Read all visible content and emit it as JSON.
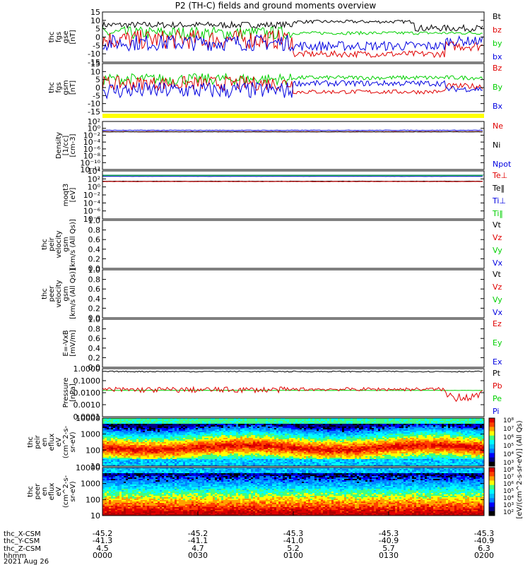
{
  "title": "P2 (TH-C) fields and ground moments overview",
  "colors": {
    "black": "#000000",
    "red": "#e00000",
    "green": "#00d000",
    "blue": "#0000e0",
    "teal": "#2e8b8b",
    "yellow": "#ffff00"
  },
  "chart_data": [
    {
      "id": "p1",
      "type": "line",
      "ylabel": [
        "thc",
        "fgs",
        "gse",
        "[nT]"
      ],
      "ticks": [
        "15",
        "10",
        "5",
        "0",
        "-5",
        "-10",
        "-15"
      ],
      "ylim": [
        -15,
        16
      ],
      "grid": false,
      "legend": [
        {
          "label": "Bt",
          "color": "black"
        },
        {
          "label": "bz",
          "color": "red"
        },
        {
          "label": "by",
          "color": "green"
        },
        {
          "label": "bx",
          "color": "blue"
        }
      ],
      "series": [
        {
          "name": "Bt",
          "seg": [
            [
              0,
              0.5,
              8,
              2
            ],
            [
              0.5,
              0.82,
              10,
              1
            ],
            [
              0.82,
              1,
              6,
              2
            ]
          ]
        },
        {
          "name": "by",
          "seg": [
            [
              0,
              0.5,
              3,
              4
            ],
            [
              0.5,
              1,
              3,
              1
            ]
          ]
        },
        {
          "name": "bz",
          "seg": [
            [
              0,
              0.5,
              -1,
              6
            ],
            [
              0.5,
              0.9,
              -10,
              2
            ],
            [
              0.9,
              1,
              -5,
              3
            ]
          ]
        },
        {
          "name": "bx",
          "seg": [
            [
              0,
              0.5,
              -3,
              5
            ],
            [
              0.5,
              0.9,
              -5,
              3
            ],
            [
              0.9,
              1,
              -2,
              3
            ]
          ]
        }
      ]
    },
    {
      "id": "p2",
      "type": "line",
      "ylabel": [
        "thc",
        "fgs",
        "gsm",
        "[nT]"
      ],
      "ticks": [
        "15",
        "10",
        "5",
        "0",
        "-5",
        "-10",
        "-15"
      ],
      "ylim": [
        -18,
        16
      ],
      "grid": false,
      "legend": [
        {
          "label": "Bz",
          "color": "red"
        },
        {
          "label": "By",
          "color": "green"
        },
        {
          "label": "Bx",
          "color": "blue"
        }
      ],
      "series": [
        {
          "name": "By",
          "seg": [
            [
              0,
              0.5,
              5,
              4
            ],
            [
              0.5,
              1,
              6,
              1.5
            ]
          ]
        },
        {
          "name": "Bz",
          "seg": [
            [
              0,
              0.5,
              2,
              5
            ],
            [
              0.5,
              0.9,
              -4,
              1.5
            ],
            [
              0.9,
              1,
              0,
              2
            ]
          ]
        },
        {
          "name": "Bx",
          "seg": [
            [
              0,
              0.5,
              -3,
              6
            ],
            [
              0.5,
              0.9,
              2,
              2
            ],
            [
              0.9,
              1,
              -2,
              2
            ]
          ]
        }
      ]
    },
    {
      "id": "p3",
      "type": "line",
      "ylabel": [
        "Density",
        "[1/cc]",
        "[cm-3]"
      ],
      "ticks": [
        "10²",
        "10⁰",
        "10⁻²",
        "10⁻⁴",
        "10⁻⁶",
        "10⁻⁸",
        "10⁻¹⁰",
        "10⁻¹²"
      ],
      "ylim": [
        -13,
        3
      ],
      "grid": false,
      "legend": [
        {
          "label": "Ne",
          "color": "red"
        },
        {
          "label": "Ni",
          "color": "black"
        },
        {
          "label": "Npot",
          "color": "blue"
        }
      ],
      "series": [
        {
          "name": "Npot",
          "seg": [
            [
              0,
              1,
              0.05,
              0.1
            ]
          ]
        },
        {
          "name": "Ne",
          "seg": [
            [
              0,
              1,
              -0.4,
              0.05
            ]
          ]
        },
        {
          "name": "Ni",
          "seg": [
            [
              0,
              1,
              -0.45,
              0.05
            ]
          ]
        }
      ]
    },
    {
      "id": "p4",
      "type": "line",
      "ylabel": [
        "moqt3",
        "[eV]"
      ],
      "ticks": [
        "10⁴",
        "10²",
        "10⁰",
        "10⁻²",
        "10⁻⁴",
        "10⁻⁶",
        "10⁻⁸"
      ],
      "ylim": [
        -9,
        5
      ],
      "grid": false,
      "legend": [
        {
          "label": "Te⊥",
          "color": "red"
        },
        {
          "label": "Te‖",
          "color": "black"
        },
        {
          "label": "Ti⊥",
          "color": "blue"
        },
        {
          "label": "Ti‖",
          "color": "green"
        }
      ],
      "series": [
        {
          "name": "Ti‖",
          "seg": [
            [
              0,
              1,
              3.6,
              0.02
            ]
          ]
        },
        {
          "name": "Ti⊥",
          "seg": [
            [
              0,
              1,
              3.4,
              0.02
            ]
          ]
        },
        {
          "name": "Te‖",
          "seg": [
            [
              0,
              1,
              2.0,
              0.03
            ]
          ]
        },
        {
          "name": "Te⊥",
          "seg": [
            [
              0,
              1,
              1.9,
              0.03
            ]
          ]
        }
      ]
    },
    {
      "id": "p5",
      "type": "line",
      "ylabel": [
        "thc",
        "peir",
        "velocity",
        "gsm",
        "[km/s (All Qs)]"
      ],
      "ticks": [
        "1.0",
        "0.8",
        "0.6",
        "0.4",
        "0.2",
        "0.0"
      ],
      "ylim": [
        0,
        1
      ],
      "grid": false,
      "legend": [
        {
          "label": "Vt",
          "color": "black"
        },
        {
          "label": "Vz",
          "color": "red"
        },
        {
          "label": "Vy",
          "color": "green"
        },
        {
          "label": "Vx",
          "color": "blue"
        }
      ],
      "series": []
    },
    {
      "id": "p6",
      "type": "line",
      "ylabel": [
        "thc",
        "peer",
        "velocity",
        "gsm",
        "[km/s (All Qs)]"
      ],
      "ticks": [
        "1.0",
        "0.8",
        "0.6",
        "0.4",
        "0.2",
        "0.0"
      ],
      "ylim": [
        0,
        1
      ],
      "grid": false,
      "legend": [
        {
          "label": "Vt",
          "color": "black"
        },
        {
          "label": "Vz",
          "color": "red"
        },
        {
          "label": "Vy",
          "color": "green"
        },
        {
          "label": "Vx",
          "color": "blue"
        }
      ],
      "series": []
    },
    {
      "id": "p7",
      "type": "line",
      "ylabel": [
        "E=-VxB",
        "[mV/m]"
      ],
      "ticks": [
        "1.0",
        "0.8",
        "0.6",
        "0.4",
        "0.2",
        "0.0"
      ],
      "ylim": [
        0,
        1
      ],
      "grid": false,
      "legend": [
        {
          "label": "Ez",
          "color": "red"
        },
        {
          "label": "Ey",
          "color": "green"
        },
        {
          "label": "Ex",
          "color": "blue"
        }
      ],
      "series": []
    },
    {
      "id": "p8",
      "type": "line",
      "ylabel": [
        "Pressure",
        "[nPa]"
      ],
      "ticks": [
        "1.0000",
        "0.1000",
        "0.0100",
        "0.0010",
        "0.0001"
      ],
      "ylim": [
        -4,
        0.2
      ],
      "grid": false,
      "legend": [
        {
          "label": "Pt",
          "color": "black"
        },
        {
          "label": "Pb",
          "color": "red"
        },
        {
          "label": "Pe",
          "color": "green"
        },
        {
          "label": "Pi",
          "color": "blue"
        }
      ],
      "series": [
        {
          "name": "Pt",
          "seg": [
            [
              0,
              1,
              -0.05,
              0.05
            ]
          ]
        },
        {
          "name": "Pe",
          "seg": [
            [
              0,
              1,
              -1.7,
              0.01
            ]
          ]
        },
        {
          "name": "Pb",
          "seg": [
            [
              0,
              0.5,
              -1.65,
              0.25
            ],
            [
              0.5,
              0.9,
              -1.6,
              0.15
            ],
            [
              0.9,
              1,
              -2.2,
              0.5
            ]
          ]
        }
      ]
    },
    {
      "id": "p9",
      "type": "heatmap",
      "ylabel": [
        "thc",
        "peir",
        "en",
        "eflux",
        "eV",
        "(cm^2-s-",
        "sr-eV)"
      ],
      "ticks": [
        "10000",
        "1000",
        "100",
        "10"
      ],
      "ylim": [
        0.5,
        4.3
      ],
      "log": true
    },
    {
      "id": "p10",
      "type": "heatmap",
      "ylabel": [
        "thc",
        "peer",
        "en",
        "eflux",
        "eV",
        "(cm^2-s-",
        "sr-eV)"
      ],
      "ticks": [
        "10000",
        "1000",
        "100",
        "10"
      ],
      "ylim": [
        0.8,
        4.3
      ],
      "log": true
    }
  ],
  "colorbar": {
    "label": "[eV/(cm^2-s-sr-eV)] (All Qs)",
    "ticks_top": [
      "10⁸",
      "10⁷",
      "10⁶",
      "10⁵",
      "10⁴",
      "10³"
    ],
    "ticks_bottom": [
      "10⁸",
      "10⁷",
      "10⁶",
      "10⁵",
      "10⁴",
      "10³",
      "10²"
    ]
  },
  "xaxis": {
    "rows": [
      {
        "label": "thc_X-CSM",
        "values": [
          "-45.2",
          "-45.2",
          "-45.3",
          "-45.3",
          "-45.3"
        ]
      },
      {
        "label": "thc_Y-CSM",
        "values": [
          "-41.3",
          "-41.1",
          "-41.0",
          "-40.9",
          "-40.9"
        ]
      },
      {
        "label": "thc_Z-CSM",
        "values": [
          "4.5",
          "4.7",
          "5.2",
          "5.7",
          "6.3"
        ]
      },
      {
        "label": "hhmm",
        "values": [
          "0000",
          "0030",
          "0100",
          "0130",
          "0200"
        ]
      }
    ],
    "date": "2021 Aug 26"
  }
}
